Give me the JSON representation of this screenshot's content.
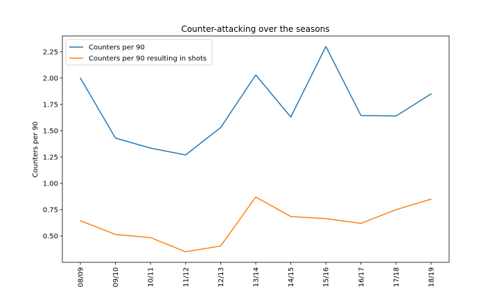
{
  "chart_data": {
    "type": "line",
    "title": "Counter-attacking over the seasons",
    "xlabel": "",
    "ylabel": "Counters per 90",
    "categories": [
      "08/09",
      "09/10",
      "10/11",
      "11/12",
      "12/13",
      "13/14",
      "14/15",
      "15/16",
      "16/17",
      "17/18",
      "18/19"
    ],
    "ylim": [
      0.25,
      2.4
    ],
    "yticks": [
      "0.50",
      "0.75",
      "1.00",
      "1.25",
      "1.50",
      "1.75",
      "2.00",
      "2.25"
    ],
    "grid": false,
    "legend_position": "top-left",
    "series": [
      {
        "name": "Counters per 90",
        "color": "#1f77b4",
        "values": [
          2.0,
          1.43,
          1.335,
          1.27,
          1.53,
          2.03,
          1.63,
          2.3,
          1.645,
          1.64,
          1.85
        ]
      },
      {
        "name": "Counters per 90 resulting in shots",
        "color": "#ff7f0e",
        "values": [
          0.645,
          0.515,
          0.485,
          0.35,
          0.405,
          0.87,
          0.685,
          0.665,
          0.62,
          0.75,
          0.85
        ]
      }
    ]
  }
}
